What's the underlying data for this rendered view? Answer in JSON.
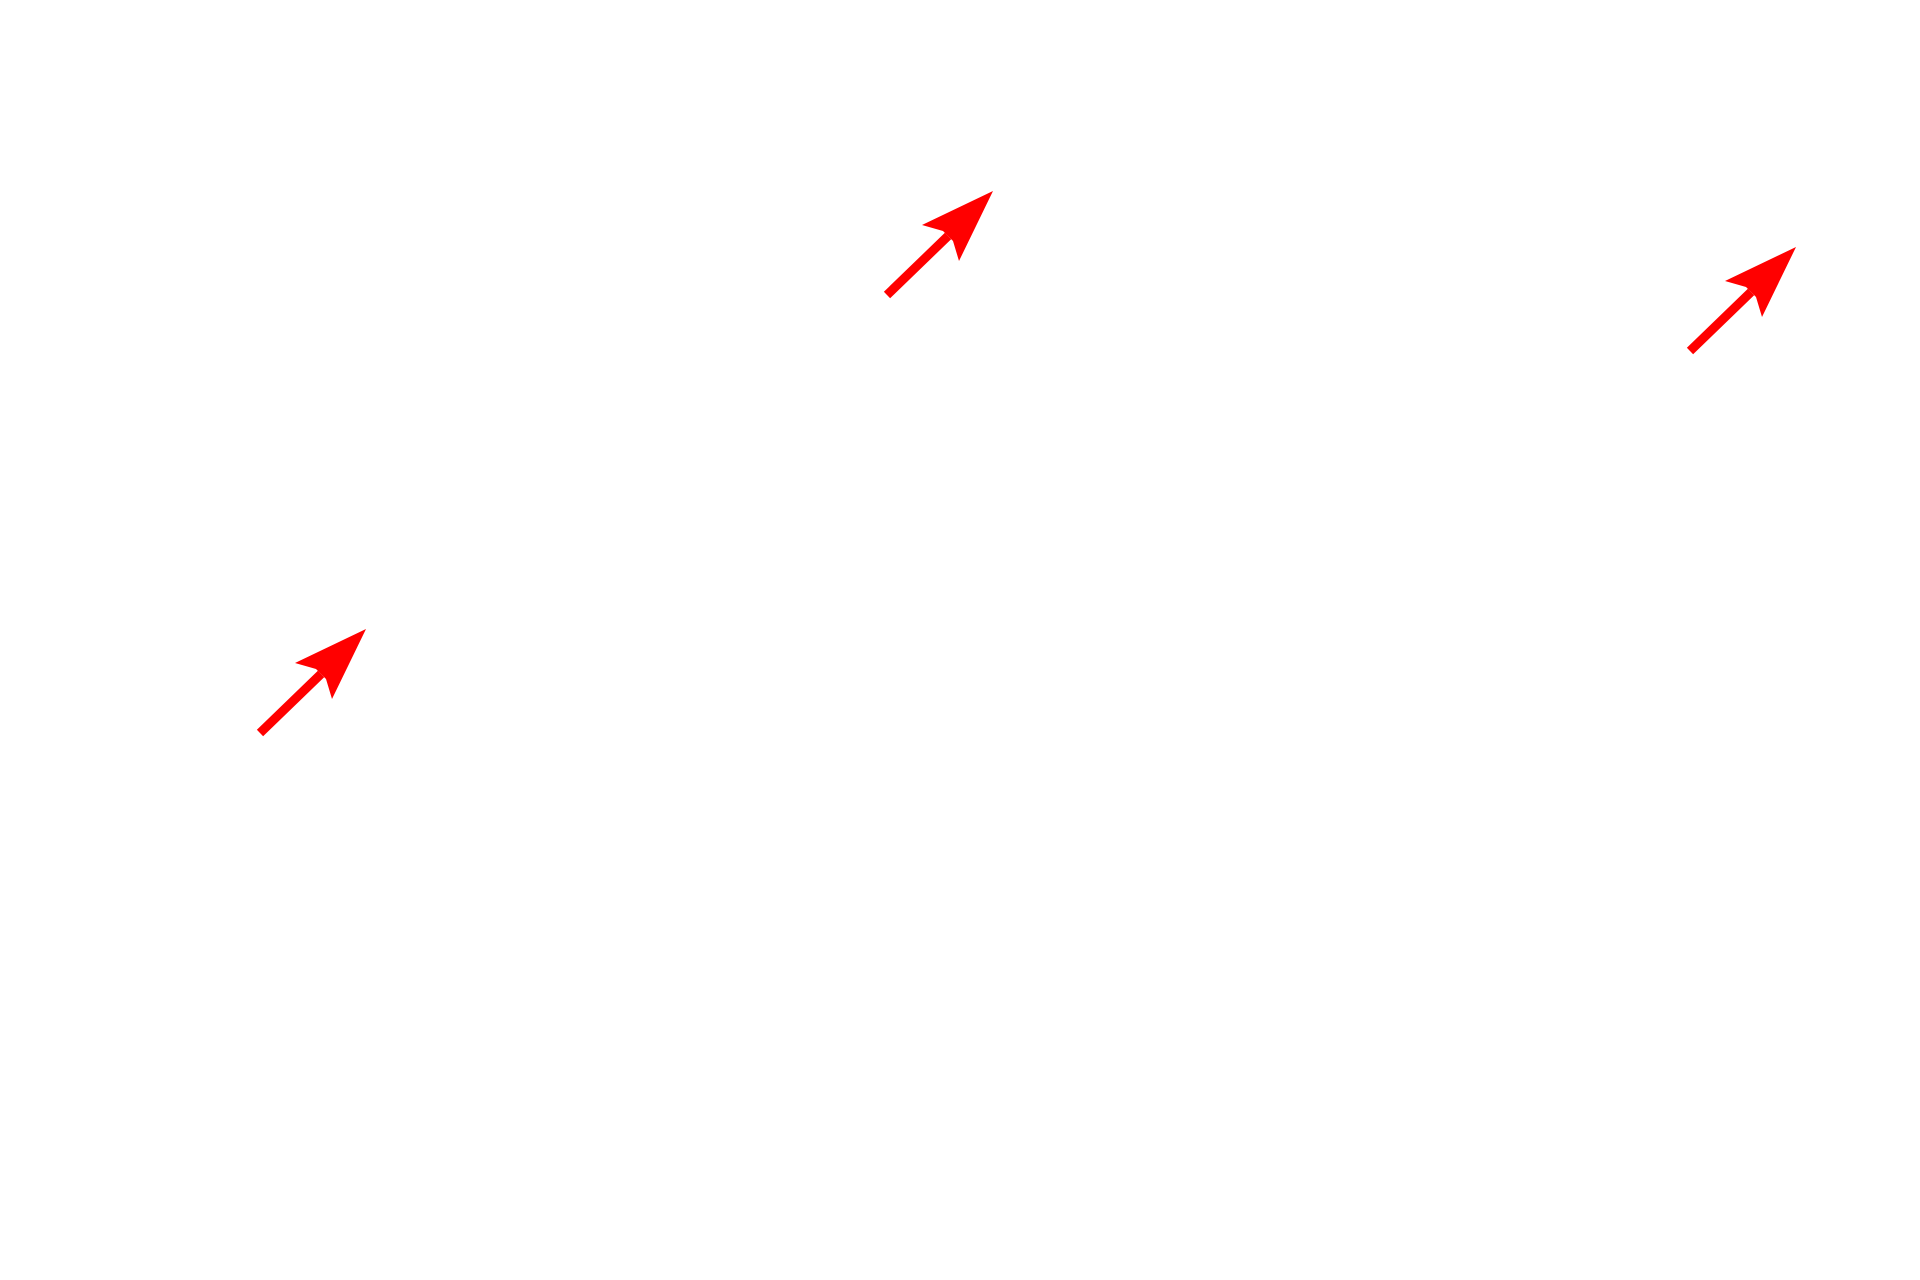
{
  "canvas": {
    "background": "#ffffff"
  },
  "annotations": {
    "arrow_color": "#ff0000",
    "arrows": [
      {
        "icon": "arrow-up-right-icon"
      },
      {
        "icon": "arrow-up-right-icon"
      },
      {
        "icon": "arrow-up-right-icon"
      }
    ]
  }
}
